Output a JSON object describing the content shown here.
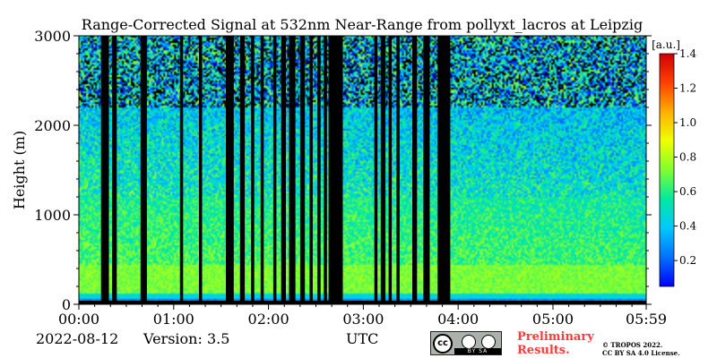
{
  "chart_data": {
    "type": "heatmap",
    "title": "Range-Corrected Signal at 532nm Near-Range from pollyxt_lacros at Leipzig",
    "ylabel": "Height (m)",
    "xlabel": "UTC",
    "x_range": [
      "00:00",
      "05:59"
    ],
    "y_range": [
      0,
      3000
    ],
    "x_ticks": [
      "00:00",
      "01:00",
      "02:00",
      "03:00",
      "04:00",
      "05:00",
      "05:59"
    ],
    "y_ticks": [
      0,
      1000,
      2000,
      3000
    ],
    "colorbar": {
      "label": "[a.u.]",
      "range": [
        0.05,
        1.4
      ],
      "ticks": [
        0.2,
        0.4,
        0.6,
        0.8,
        1.0,
        1.2,
        1.4
      ]
    },
    "colormap": [
      "#0000ff",
      "#0070ff",
      "#00c8ff",
      "#00e8a0",
      "#80ff30",
      "#f0ff00",
      "#ffb000",
      "#ff4000",
      "#d00000"
    ],
    "no_data_color": "#000000",
    "no_data_intervals_utc": [
      [
        "00:14",
        "00:19"
      ],
      [
        "00:21",
        "00:24"
      ],
      [
        "00:39",
        "00:43"
      ],
      [
        "01:04",
        "01:06"
      ],
      [
        "01:16",
        "01:18"
      ],
      [
        "01:33",
        "01:38"
      ],
      [
        "01:42",
        "01:45"
      ],
      [
        "01:49",
        "01:51"
      ],
      [
        "01:55",
        "01:57"
      ],
      [
        "02:03",
        "02:05"
      ],
      [
        "02:08",
        "02:11"
      ],
      [
        "02:13",
        "02:17"
      ],
      [
        "02:20",
        "02:23"
      ],
      [
        "02:26",
        "02:28"
      ],
      [
        "02:31",
        "02:33"
      ],
      [
        "02:35",
        "02:37"
      ],
      [
        "02:38",
        "02:47"
      ],
      [
        "03:07",
        "03:09"
      ],
      [
        "03:11",
        "03:14"
      ],
      [
        "03:16",
        "03:18"
      ],
      [
        "03:21",
        "03:23"
      ],
      [
        "03:31",
        "03:34"
      ],
      [
        "03:38",
        "03:42"
      ],
      [
        "03:47",
        "03:55"
      ]
    ]
  },
  "footer": {
    "date": "2022-08-12",
    "version": "Version: 3.5",
    "utc": "UTC",
    "preliminary_line1": "Preliminary",
    "preliminary_line2": "Results.",
    "copyright_line1": "© TROPOS 2022.",
    "copyright_line2": "CC BY SA 4.0 License.",
    "cc_text": "cc",
    "cc_strip": "BY SA"
  }
}
